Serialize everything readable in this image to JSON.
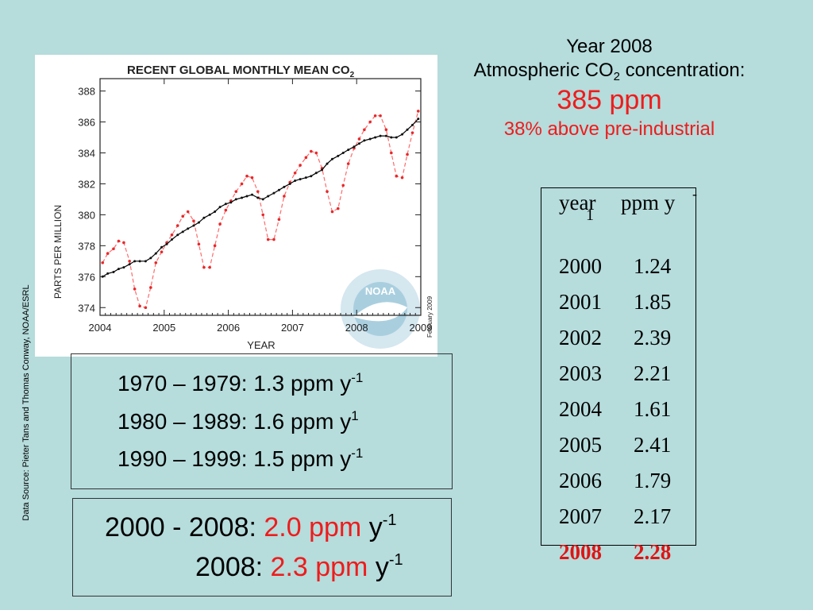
{
  "slide": {
    "headline": {
      "line1": "Year 2008",
      "line2_prefix": "Atmospheric CO",
      "line2_sub": "2",
      "line2_suffix": " concentration:",
      "value": "385 ppm",
      "above": "38% above pre-industrial"
    },
    "source_note": "Data Source: Pieter Tans and Thomas Conway, NOAA/ESRL",
    "rate_table": {
      "header_year": "year",
      "header_ppm": "ppm y",
      "header_exp": "-",
      "header_one": "1",
      "rows": [
        {
          "year": "2000",
          "rate": "1.24"
        },
        {
          "year": "2001",
          "rate": "1.85"
        },
        {
          "year": "2002",
          "rate": "2.39"
        },
        {
          "year": "2003",
          "rate": "2.21"
        },
        {
          "year": "2004",
          "rate": "1.61"
        },
        {
          "year": "2005",
          "rate": "2.41"
        },
        {
          "year": "2006",
          "rate": "1.79"
        },
        {
          "year": "2007",
          "rate": "2.17"
        },
        {
          "year": "2008",
          "rate": "2.28"
        }
      ]
    },
    "decades": [
      {
        "text": "1970 – 1979: 1.3 ppm y",
        "sup": "-1"
      },
      {
        "text": "1980 – 1989: 1.6 ppm y",
        "sup": "1"
      },
      {
        "text": "1990 – 1999: 1.5 ppm y",
        "sup": "-1"
      }
    ],
    "summary": [
      {
        "label": "2000 - 2008:  ",
        "value": "2.0 ppm",
        "unit": " y",
        "sup": "-1"
      },
      {
        "label": "2008:  ",
        "value": "2.3 ppm",
        "unit": " y",
        "sup": "-1"
      }
    ],
    "colors": {
      "background": "#b6dcdc",
      "accent_red": "#ee1c1c",
      "trend_line": "#000000",
      "monthly_line": "#ff6b6b"
    }
  },
  "chart_data": {
    "type": "line",
    "title": "RECENT GLOBAL MONTHLY MEAN CO",
    "title_sub": "2",
    "xlabel": "YEAR",
    "ylabel": "PARTS PER MILLION",
    "xlim": [
      2004,
      2009
    ],
    "ylim": [
      373.5,
      388.8
    ],
    "xticks": [
      2004,
      2005,
      2006,
      2007,
      2008,
      2009
    ],
    "yticks": [
      374,
      376,
      378,
      380,
      382,
      384,
      386,
      388
    ],
    "xtick_labels": [
      "2004",
      "2005",
      "2006",
      "2007",
      "2008",
      "2009"
    ],
    "ytick_labels": [
      "374",
      "376",
      "378",
      "380",
      "382",
      "384",
      "386",
      "388"
    ],
    "watermark_text": "NOAA",
    "date_stamp": "February 2009",
    "grid": false,
    "series": [
      {
        "style": "dashed-red-with-dots",
        "x": [
          2004.04,
          2004.12,
          2004.21,
          2004.29,
          2004.37,
          2004.46,
          2004.54,
          2004.62,
          2004.71,
          2004.79,
          2004.87,
          2004.96,
          2005.04,
          2005.12,
          2005.21,
          2005.29,
          2005.37,
          2005.46,
          2005.54,
          2005.62,
          2005.71,
          2005.79,
          2005.87,
          2005.96,
          2006.04,
          2006.12,
          2006.21,
          2006.29,
          2006.37,
          2006.46,
          2006.54,
          2006.62,
          2006.71,
          2006.79,
          2006.87,
          2006.96,
          2007.04,
          2007.12,
          2007.21,
          2007.29,
          2007.37,
          2007.46,
          2007.54,
          2007.62,
          2007.71,
          2007.79,
          2007.87,
          2007.96,
          2008.04,
          2008.12,
          2008.21,
          2008.29,
          2008.37,
          2008.46,
          2008.54,
          2008.62,
          2008.71,
          2008.79,
          2008.87,
          2008.96
        ],
        "values": [
          376.9,
          377.5,
          377.8,
          378.3,
          378.2,
          377.0,
          375.2,
          374.1,
          374.0,
          375.3,
          376.9,
          377.6,
          378.2,
          378.7,
          379.3,
          379.9,
          380.2,
          379.6,
          378.1,
          376.6,
          376.6,
          378.0,
          379.4,
          380.3,
          380.9,
          381.5,
          382.0,
          382.5,
          382.4,
          381.5,
          380.0,
          378.4,
          378.4,
          379.7,
          381.2,
          382.1,
          382.7,
          383.2,
          383.7,
          384.1,
          384.0,
          383.0,
          381.5,
          380.2,
          380.4,
          381.9,
          383.3,
          384.3,
          384.9,
          385.5,
          386.0,
          386.4,
          386.4,
          385.5,
          384.0,
          382.5,
          382.4,
          383.9,
          385.3,
          386.7
        ]
      },
      {
        "style": "solid-black-with-dots",
        "x": [
          2004.04,
          2004.12,
          2004.21,
          2004.29,
          2004.37,
          2004.46,
          2004.54,
          2004.62,
          2004.71,
          2004.79,
          2004.87,
          2004.96,
          2005.04,
          2005.12,
          2005.21,
          2005.29,
          2005.37,
          2005.46,
          2005.54,
          2005.62,
          2005.71,
          2005.79,
          2005.87,
          2005.96,
          2006.04,
          2006.12,
          2006.21,
          2006.29,
          2006.37,
          2006.46,
          2006.54,
          2006.62,
          2006.71,
          2006.79,
          2006.87,
          2006.96,
          2007.04,
          2007.12,
          2007.21,
          2007.29,
          2007.37,
          2007.46,
          2007.54,
          2007.62,
          2007.71,
          2007.79,
          2007.87,
          2007.96,
          2008.04,
          2008.12,
          2008.21,
          2008.29,
          2008.37,
          2008.46,
          2008.54,
          2008.62,
          2008.71,
          2008.79,
          2008.87,
          2008.96
        ],
        "values": [
          376.0,
          376.2,
          376.3,
          376.5,
          376.6,
          376.8,
          377.0,
          377.0,
          377.0,
          377.2,
          377.5,
          377.9,
          378.1,
          378.4,
          378.7,
          378.9,
          379.1,
          379.3,
          379.5,
          379.8,
          380.0,
          380.2,
          380.5,
          380.7,
          380.8,
          381.0,
          381.1,
          381.2,
          381.3,
          381.1,
          381.0,
          381.2,
          381.4,
          381.6,
          381.8,
          382.0,
          382.2,
          382.3,
          382.4,
          382.5,
          382.7,
          382.9,
          383.3,
          383.6,
          383.8,
          384.0,
          384.2,
          384.4,
          384.6,
          384.8,
          384.9,
          385.0,
          385.1,
          385.1,
          385.0,
          385.0,
          385.2,
          385.5,
          385.8,
          386.2
        ]
      }
    ]
  }
}
